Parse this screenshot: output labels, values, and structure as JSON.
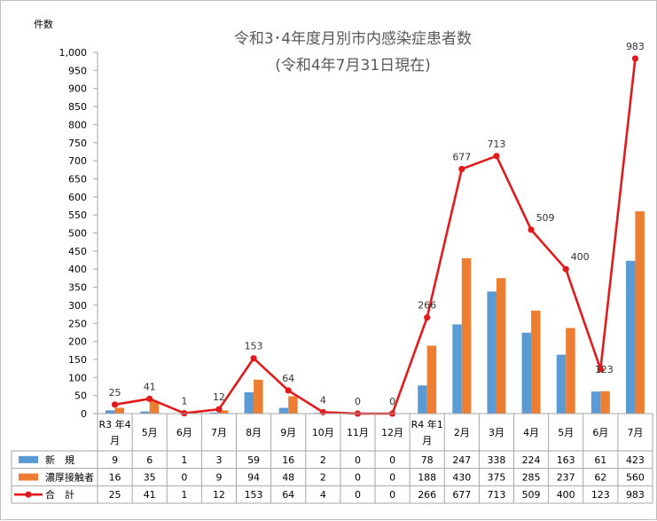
{
  "chart_data": {
    "type": "bar",
    "title": "令和3･4年度月別市内感染症患者数",
    "subtitle": "(令和4年7月31日現在)",
    "ylabel": "件数",
    "ylim": [
      0,
      1000
    ],
    "yticks": [
      "0",
      "50",
      "100",
      "150",
      "200",
      "250",
      "300",
      "350",
      "400",
      "450",
      "500",
      "550",
      "600",
      "650",
      "700",
      "750",
      "800",
      "850",
      "900",
      "950",
      "1,000"
    ],
    "categories": [
      [
        "R3 年4",
        "月"
      ],
      [
        "5月"
      ],
      [
        "6月"
      ],
      [
        "7月"
      ],
      [
        "8月"
      ],
      [
        "9月"
      ],
      [
        "10月"
      ],
      [
        "11月"
      ],
      [
        "12月"
      ],
      [
        "R4 年1",
        "月"
      ],
      [
        "2月"
      ],
      [
        "3月"
      ],
      [
        "4月"
      ],
      [
        "5月"
      ],
      [
        "6月"
      ],
      [
        "7月"
      ]
    ],
    "series": [
      {
        "name": "新　規",
        "kind": "bar",
        "color": "#5b9bd5",
        "values": [
          9,
          6,
          1,
          3,
          59,
          16,
          2,
          0,
          0,
          78,
          247,
          338,
          224,
          163,
          61,
          423
        ]
      },
      {
        "name": "濃厚接触者",
        "kind": "bar",
        "color": "#ed7d31",
        "values": [
          16,
          35,
          0,
          9,
          94,
          48,
          2,
          0,
          0,
          188,
          430,
          375,
          285,
          237,
          62,
          560
        ]
      },
      {
        "name": "合　計",
        "kind": "line",
        "color": "#e31a1c",
        "values": [
          25,
          41,
          1,
          12,
          153,
          64,
          4,
          0,
          0,
          266,
          677,
          713,
          509,
          400,
          123,
          983
        ]
      }
    ],
    "data_labels": [
      "25",
      "41",
      "1",
      "12",
      "153",
      "64",
      "4",
      "0",
      "0",
      "266",
      "677",
      "713",
      "509",
      "400",
      "123",
      "983"
    ],
    "table": [
      [
        "9",
        "6",
        "1",
        "3",
        "59",
        "16",
        "2",
        "0",
        "0",
        "78",
        "247",
        "338",
        "224",
        "163",
        "61",
        "423"
      ],
      [
        "16",
        "35",
        "0",
        "9",
        "94",
        "48",
        "2",
        "0",
        "0",
        "188",
        "430",
        "375",
        "285",
        "237",
        "62",
        "560"
      ],
      [
        "25",
        "41",
        "1",
        "12",
        "153",
        "64",
        "4",
        "0",
        "0",
        "266",
        "677",
        "713",
        "509",
        "400",
        "123",
        "983"
      ]
    ],
    "grid": false,
    "legend": "bottom-table"
  }
}
